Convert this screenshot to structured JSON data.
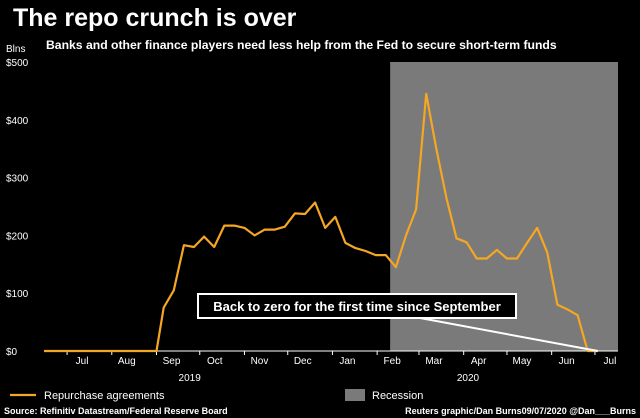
{
  "chart_data": {
    "type": "line",
    "title": "The repo crunch is over",
    "subtitle": "Banks and other finance players need less help from the Fed to secure short-term funds",
    "ylabel": "Blns",
    "ylim": [
      0,
      500
    ],
    "y_ticks": [
      "$500",
      "$400",
      "$300",
      "$200",
      "$100",
      "$0"
    ],
    "y_tick_values": [
      500,
      400,
      300,
      200,
      100,
      0
    ],
    "x_range": [
      "2019-06-15",
      "2020-07-17"
    ],
    "x_ticks": [
      {
        "label": "Jul",
        "date": "2019-07-01"
      },
      {
        "label": "Aug",
        "date": "2019-08-01"
      },
      {
        "label": "Sep",
        "date": "2019-09-01"
      },
      {
        "label": "Oct",
        "date": "2019-10-01"
      },
      {
        "label": "Nov",
        "date": "2019-11-01"
      },
      {
        "label": "Dec",
        "date": "2019-12-01"
      },
      {
        "label": "Jan",
        "date": "2020-01-01"
      },
      {
        "label": "Feb",
        "date": "2020-02-01"
      },
      {
        "label": "Mar",
        "date": "2020-03-01"
      },
      {
        "label": "Apr",
        "date": "2020-04-01"
      },
      {
        "label": "May",
        "date": "2020-05-01"
      },
      {
        "label": "Jun",
        "date": "2020-06-01"
      },
      {
        "label": "Jul",
        "date": "2020-07-01"
      }
    ],
    "years": [
      {
        "label": "2019",
        "date": "2019-09-24"
      },
      {
        "label": "2020",
        "date": "2020-04-04"
      }
    ],
    "grid": false,
    "series": [
      {
        "name": "Repurchase agreements",
        "color": "#f5a623",
        "x": [
          "2019-06-15",
          "2019-09-01",
          "2019-09-06",
          "2019-09-13",
          "2019-09-20",
          "2019-09-27",
          "2019-10-04",
          "2019-10-11",
          "2019-10-18",
          "2019-10-25",
          "2019-11-01",
          "2019-11-08",
          "2019-11-15",
          "2019-11-22",
          "2019-11-29",
          "2019-12-06",
          "2019-12-13",
          "2019-12-20",
          "2019-12-27",
          "2020-01-03",
          "2020-01-10",
          "2020-01-17",
          "2020-01-24",
          "2020-01-31",
          "2020-02-07",
          "2020-02-14",
          "2020-02-21",
          "2020-02-28",
          "2020-03-06",
          "2020-03-13",
          "2020-03-20",
          "2020-03-27",
          "2020-04-03",
          "2020-04-10",
          "2020-04-17",
          "2020-04-24",
          "2020-05-01",
          "2020-05-08",
          "2020-05-15",
          "2020-05-22",
          "2020-05-29",
          "2020-06-05",
          "2020-06-12",
          "2020-06-19",
          "2020-06-26",
          "2020-07-03"
        ],
        "values": [
          0,
          0,
          75,
          105,
          183,
          180,
          198,
          180,
          217,
          217,
          213,
          200,
          210,
          210,
          215,
          238,
          237,
          257,
          213,
          232,
          187,
          178,
          173,
          166,
          166,
          145,
          200,
          245,
          445,
          350,
          265,
          195,
          188,
          160,
          160,
          175,
          160,
          160,
          187,
          213,
          170,
          80,
          72,
          62,
          0,
          0
        ]
      }
    ],
    "shaded": [
      {
        "name": "Recession",
        "start": "2020-02-10",
        "end": "2020-07-17",
        "color": "#7a7a7a"
      }
    ],
    "annotations": [
      {
        "text": "Back to zero for the first time since September",
        "points_to": {
          "x": "2020-07-03",
          "y": 0
        }
      }
    ],
    "legend": {
      "placement": "bottom",
      "items": [
        {
          "label": "Repurchase agreements",
          "kind": "line",
          "color": "#f5a623"
        },
        {
          "label": "Recession",
          "kind": "box",
          "color": "#7a7a7a"
        }
      ]
    }
  },
  "footer": {
    "source": "Source: Refinitiv Datastream/Federal Reserve Board",
    "credit": "Reuters graphic/Dan Burns09/07/2020 @Dan___Burns"
  }
}
